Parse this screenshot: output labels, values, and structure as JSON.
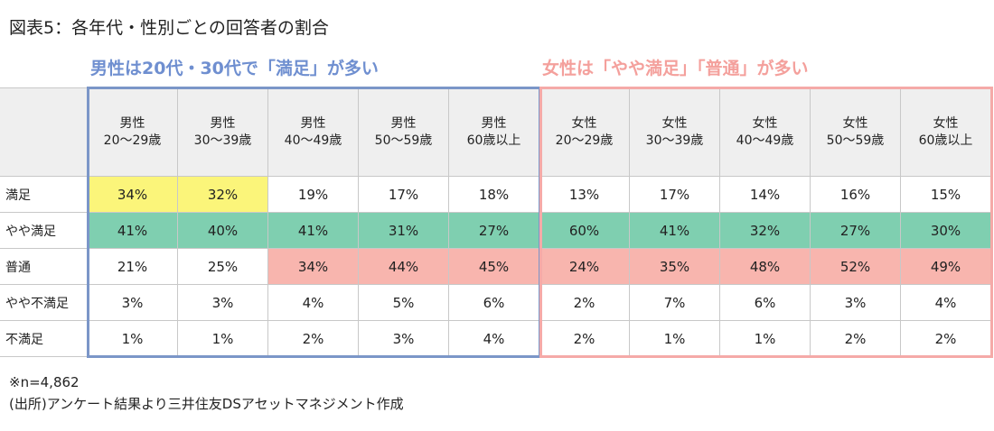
{
  "title": "図表5：各年代・性別ごとの回答者の割合",
  "group_headers": [
    "男性は20代・30代で「満足」が多い",
    "女性は「やや満足」「普通」が多い"
  ],
  "table": {
    "columns": [
      "男性\n20～29歳",
      "男性\n30～39歳",
      "男性\n40～49歳",
      "男性\n50～59歳",
      "男性\n60歳以上",
      "女性\n20～29歳",
      "女性\n30～39歳",
      "女性\n40～49歳",
      "女性\n50～59歳",
      "女性\n60歳以上"
    ],
    "rows": [
      {
        "label": "満足",
        "cells": [
          "34%",
          "32%",
          "19%",
          "17%",
          "18%",
          "13%",
          "17%",
          "14%",
          "16%",
          "15%"
        ]
      },
      {
        "label": "やや満足",
        "cells": [
          "41%",
          "40%",
          "41%",
          "31%",
          "27%",
          "60%",
          "41%",
          "32%",
          "27%",
          "30%"
        ]
      },
      {
        "label": "普通",
        "cells": [
          "21%",
          "25%",
          "34%",
          "44%",
          "45%",
          "24%",
          "35%",
          "48%",
          "52%",
          "49%"
        ]
      },
      {
        "label": "やや不満足",
        "cells": [
          "3%",
          "3%",
          "4%",
          "5%",
          "6%",
          "2%",
          "7%",
          "6%",
          "3%",
          "4%"
        ]
      },
      {
        "label": "不満足",
        "cells": [
          "1%",
          "1%",
          "2%",
          "3%",
          "4%",
          "2%",
          "1%",
          "1%",
          "2%",
          "2%"
        ]
      }
    ]
  },
  "notes": [
    "※n=4,862",
    "(出所)アンケート結果より三井住友DSアセットマネジメント作成"
  ]
}
